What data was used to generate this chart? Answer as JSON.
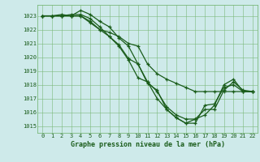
{
  "title": "Graphe pression niveau de la mer (hPa)",
  "bg_color": "#ceeaea",
  "grid_color": "#7ab87a",
  "line_color": "#1a5c1a",
  "xlim": [
    -0.5,
    22.5
  ],
  "ylim": [
    1014.5,
    1023.8
  ],
  "yticks": [
    1015,
    1016,
    1017,
    1018,
    1019,
    1020,
    1021,
    1022,
    1023
  ],
  "xticks": [
    0,
    1,
    2,
    3,
    4,
    5,
    6,
    7,
    8,
    9,
    10,
    11,
    12,
    13,
    14,
    15,
    16,
    17,
    18,
    19,
    20,
    21,
    22
  ],
  "series": [
    [
      1023.0,
      1023.0,
      1023.1,
      1023.0,
      1023.4,
      1023.1,
      1022.6,
      1022.2,
      1021.4,
      1020.8,
      1019.5,
      1018.1,
      1017.6,
      1016.2,
      1015.6,
      1015.2,
      1015.5,
      1016.2,
      1016.2,
      1017.6,
      1018.2,
      1017.6,
      1017.5
    ],
    [
      1023.0,
      1023.0,
      1023.0,
      1023.1,
      1023.1,
      1022.8,
      1022.2,
      1021.5,
      1020.9,
      1019.9,
      1019.5,
      1018.2,
      1017.5,
      1016.4,
      1015.8,
      1015.5,
      1015.5,
      1015.8,
      1016.5,
      1018.0,
      1018.4,
      1017.5,
      1017.5
    ],
    [
      1023.0,
      1023.0,
      1023.0,
      1023.0,
      1023.0,
      1022.6,
      1022.0,
      1021.5,
      1020.8,
      1019.8,
      1018.5,
      1018.2,
      1017.0,
      1016.2,
      1015.6,
      1015.2,
      1015.2,
      1016.5,
      1016.6,
      1017.8,
      1018.0,
      1017.5,
      1017.5
    ],
    [
      1023.0,
      1023.0,
      1023.0,
      1023.0,
      1023.0,
      1022.5,
      1022.0,
      1021.8,
      1021.5,
      1021.0,
      1020.8,
      1019.5,
      1018.8,
      1018.4,
      1018.1,
      1017.8,
      1017.5,
      1017.5,
      1017.5,
      1017.5,
      1017.5,
      1017.5,
      1017.5
    ]
  ]
}
